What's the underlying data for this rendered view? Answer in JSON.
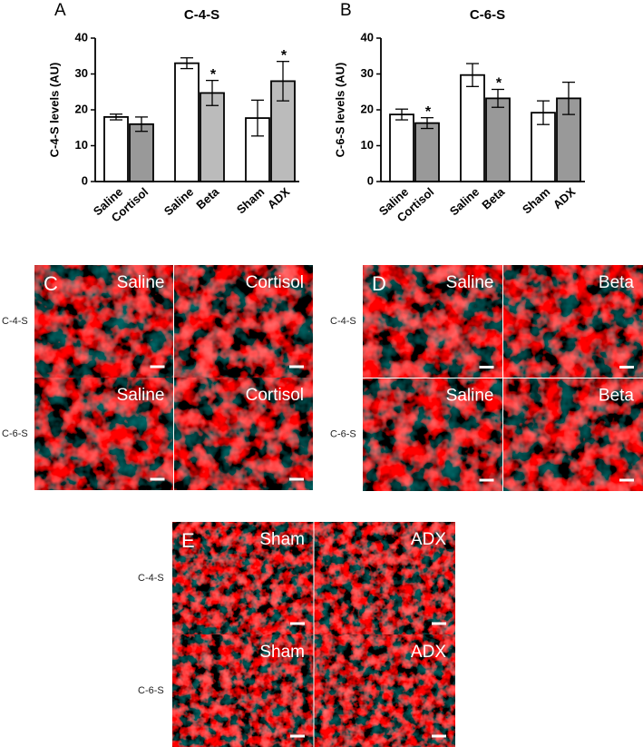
{
  "chart_data": [
    {
      "type": "bar",
      "panel_label": "A",
      "title": "C-4-S",
      "y_label": "C-4-S levels (AU)",
      "categories": [
        "Saline",
        "Cortisol",
        "Saline",
        "Beta",
        "Sham",
        "ADX"
      ],
      "values": [
        18,
        16,
        33,
        24.7,
        17.7,
        28
      ],
      "errors": [
        0.8,
        2,
        1.5,
        3.5,
        5,
        5.5
      ],
      "colors": [
        "#ffffff",
        "#999999",
        "#ffffff",
        "#bbbbbb",
        "#ffffff",
        "#bbbbbb"
      ],
      "significant": [
        false,
        false,
        false,
        true,
        false,
        true
      ],
      "significance_marker": "*",
      "ylim": [
        0,
        40
      ],
      "yticks": [
        0,
        10,
        20,
        30,
        40
      ]
    },
    {
      "type": "bar",
      "panel_label": "B",
      "title": "C-6-S",
      "y_label": "C-6-S levels (AU)",
      "categories": [
        "Saline",
        "Cortisol",
        "Saline",
        "Beta",
        "Sham",
        "ADX"
      ],
      "values": [
        18.7,
        16.3,
        29.7,
        23.2,
        19.2,
        23.2
      ],
      "errors": [
        1.5,
        1.5,
        3.2,
        2.5,
        3.3,
        4.5
      ],
      "colors": [
        "#ffffff",
        "#999999",
        "#ffffff",
        "#999999",
        "#ffffff",
        "#999999"
      ],
      "significant": [
        false,
        true,
        false,
        true,
        false,
        false
      ],
      "significance_marker": "*",
      "ylim": [
        0,
        40
      ],
      "yticks": [
        0,
        10,
        20,
        30,
        40
      ]
    }
  ],
  "image_panels": [
    {
      "label": "C",
      "rows": [
        {
          "label": "C-4-S",
          "images": [
            "Saline",
            "Cortisol"
          ]
        },
        {
          "label": "C-6-S",
          "images": [
            "Saline",
            "Cortisol"
          ]
        }
      ]
    },
    {
      "label": "D",
      "rows": [
        {
          "label": "C-4-S",
          "images": [
            "Saline",
            "Beta"
          ]
        },
        {
          "label": "C-6-S",
          "images": [
            "Saline",
            "Beta"
          ]
        }
      ]
    },
    {
      "label": "E",
      "rows": [
        {
          "label": "C-4-S",
          "images": [
            "Sham",
            "ADX"
          ]
        },
        {
          "label": "C-6-S",
          "images": [
            "Sham",
            "ADX"
          ]
        }
      ]
    }
  ]
}
